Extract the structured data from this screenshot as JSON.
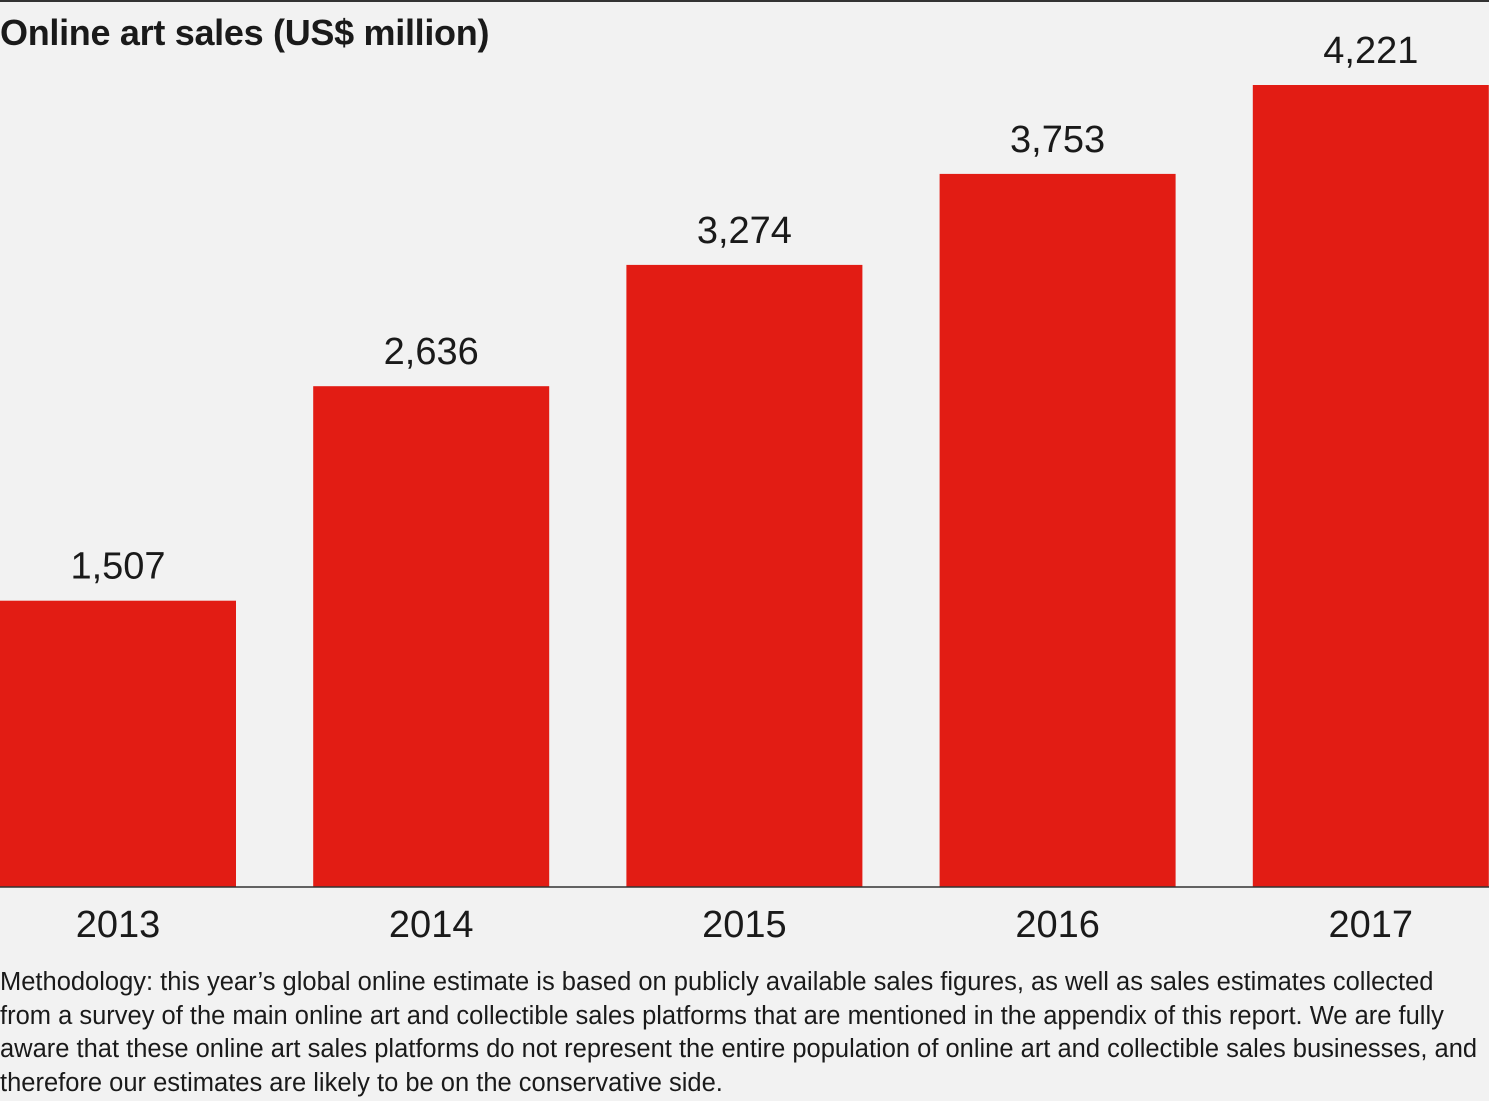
{
  "chart_data": {
    "type": "bar",
    "title": "Online art sales (US$ million)",
    "categories": [
      "2013",
      "2014",
      "2015",
      "2016",
      "2017"
    ],
    "values": [
      1507,
      2636,
      3274,
      3753,
      4221
    ],
    "value_labels": [
      "1,507",
      "2,636",
      "3,274",
      "3,753",
      "4,221"
    ],
    "xlabel": "",
    "ylabel": "",
    "ylim": [
      0,
      4221
    ],
    "grid": false,
    "bar_color": "#e21c14"
  },
  "methodology": "Methodology: this year’s global online estimate is based on publicly available sales figures, as well as sales estimates collected from a survey of the main online art and collectible sales platforms that are mentioned in the appendix of this report. We are fully aware that these online art sales platforms do not represent the entire population of online art and collectible sales businesses, and therefore our estimates are likely to be on the conservative side."
}
